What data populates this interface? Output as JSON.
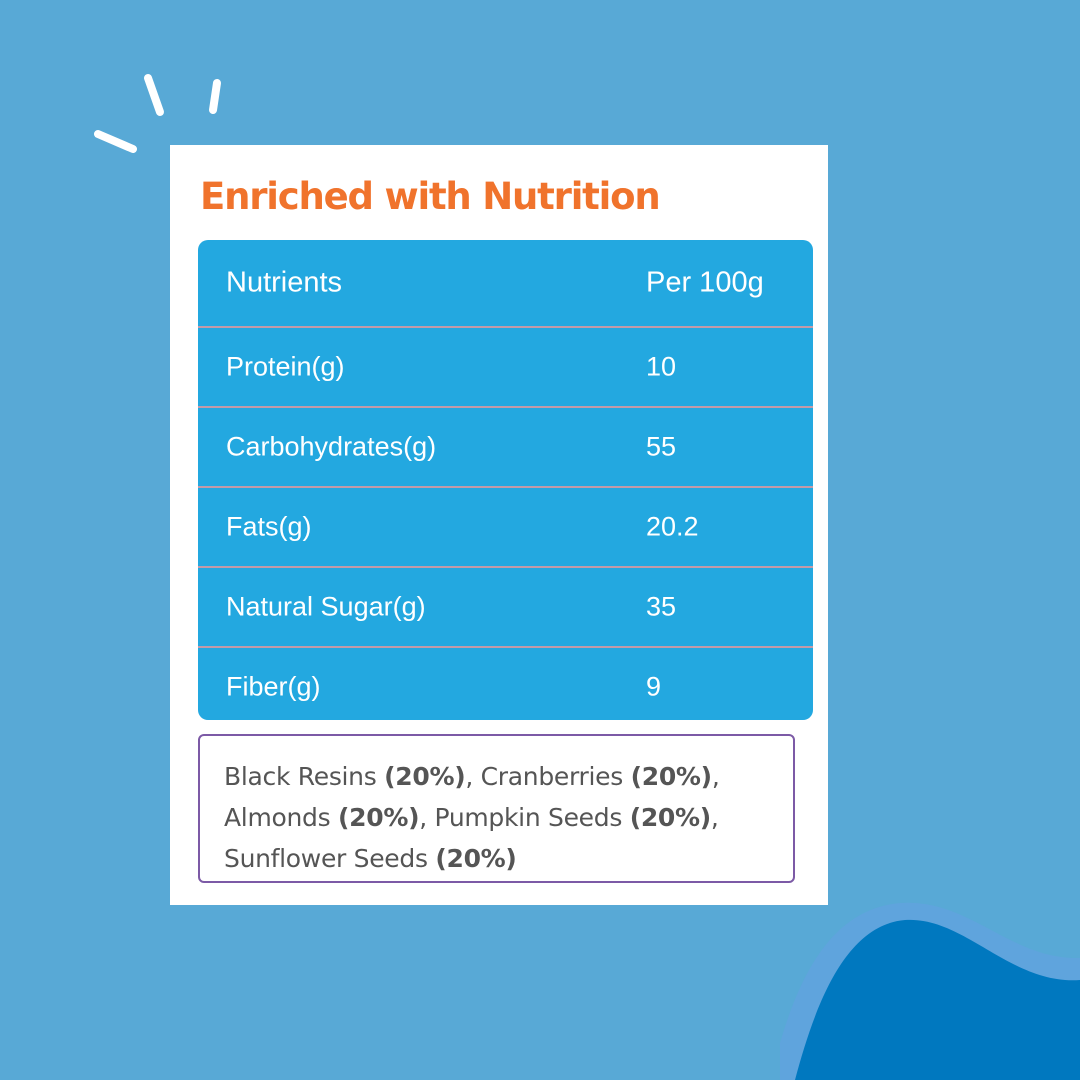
{
  "colors": {
    "background": "#58a9d6",
    "card": "#ffffff",
    "title": "#f0732c",
    "table": "#23a8e0",
    "row_divider": "#c39aa8",
    "ingredients_border": "#7c5aa6",
    "wave_dark": "#0078bf"
  },
  "icons": [
    "sparkle-lines",
    "corner-wave"
  ],
  "card": {
    "title": "Enriched with Nutrition"
  },
  "table": {
    "headers": [
      "Nutrients",
      "Per 100g"
    ],
    "rows": [
      {
        "name": "Protein(g)",
        "value": "10"
      },
      {
        "name": "Carbohydrates(g)",
        "value": "55"
      },
      {
        "name": "Fats(g)",
        "value": "20.2"
      },
      {
        "name": "Natural Sugar(g)",
        "value": "35"
      },
      {
        "name": "Fiber(g)",
        "value": "9"
      }
    ]
  },
  "ingredients": [
    {
      "name": "Black Resins",
      "percent": "(20%)"
    },
    {
      "name": "Cranberries",
      "percent": "(20%)"
    },
    {
      "name": "Almonds",
      "percent": "(20%)"
    },
    {
      "name": "Pumpkin Seeds",
      "percent": "(20%)"
    },
    {
      "name": "Sunflower Seeds",
      "percent": "(20%)"
    }
  ]
}
